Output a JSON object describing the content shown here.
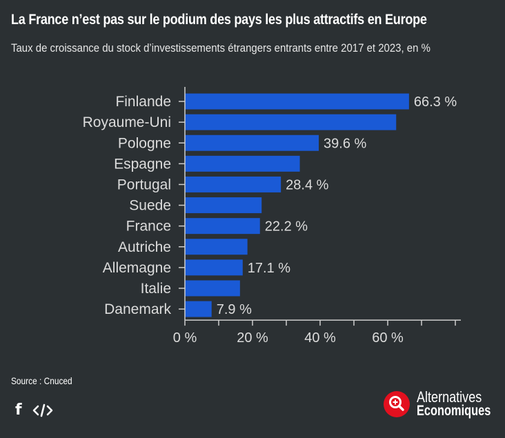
{
  "header": {
    "title": "La France n’est pas sur le podium des pays les plus attractifs en Europe",
    "subtitle": "Taux de croissance du stock d’investissements étrangers entrants entre 2017 et 2023, en %"
  },
  "chart_data": {
    "type": "bar",
    "orientation": "horizontal",
    "categories": [
      "Finlande",
      "Royaume-Uni",
      "Pologne",
      "Espagne",
      "Portugal",
      "Suede",
      "France",
      "Autriche",
      "Allemagne",
      "Italie",
      "Danemark"
    ],
    "values": [
      66.3,
      62.5,
      39.6,
      34,
      28.4,
      22.7,
      22.2,
      18.5,
      17.1,
      16.3,
      7.9
    ],
    "data_labels": [
      "66.3 %",
      "",
      "39.6 %",
      "",
      "28.4 %",
      "",
      "22.2 %",
      "",
      "17.1 %",
      "",
      "7.9 %"
    ],
    "xlim": [
      0,
      82
    ],
    "ticks": [
      0,
      10,
      20,
      30,
      40,
      50,
      60,
      70,
      80
    ],
    "tick_labels": [
      "0 %",
      "",
      "20 %",
      "",
      "40 %",
      "",
      "60 %",
      "",
      ""
    ],
    "xlabel": "",
    "ylabel": "",
    "bar_color": "#1a5ad6"
  },
  "footer": {
    "source": "Source : Cnuced",
    "facebook_icon": "f",
    "brand_line1": "Alternatives",
    "brand_line2": "Economiques"
  }
}
